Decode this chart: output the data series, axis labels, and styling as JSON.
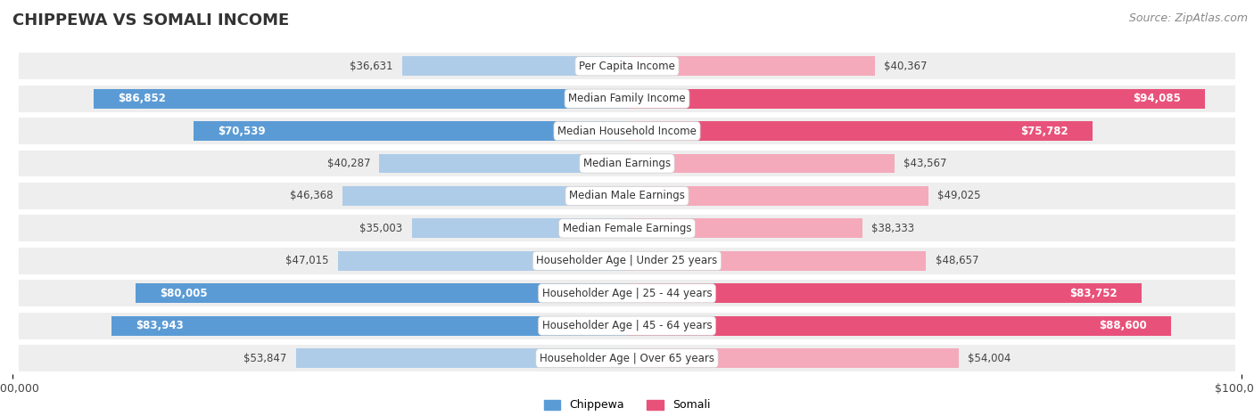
{
  "title": "CHIPPEWA VS SOMALI INCOME",
  "source": "Source: ZipAtlas.com",
  "categories": [
    "Per Capita Income",
    "Median Family Income",
    "Median Household Income",
    "Median Earnings",
    "Median Male Earnings",
    "Median Female Earnings",
    "Householder Age | Under 25 years",
    "Householder Age | 25 - 44 years",
    "Householder Age | 45 - 64 years",
    "Householder Age | Over 65 years"
  ],
  "chippewa_values": [
    36631,
    86852,
    70539,
    40287,
    46368,
    35003,
    47015,
    80005,
    83943,
    53847
  ],
  "somali_values": [
    40367,
    94085,
    75782,
    43567,
    49025,
    38333,
    48657,
    83752,
    88600,
    54004
  ],
  "chippewa_color_high": "#5b9bd5",
  "chippewa_color_low": "#aecce8",
  "somali_color_high": "#e8527a",
  "somali_color_low": "#f4aabb",
  "row_bg_color": "#eeeeee",
  "max_value": 100000,
  "background_color": "#ffffff",
  "title_fontsize": 13,
  "source_fontsize": 9,
  "bar_label_fontsize": 8.5,
  "category_fontsize": 8.5,
  "axis_label_fontsize": 9,
  "legend_fontsize": 9,
  "high_value_threshold": 60000
}
